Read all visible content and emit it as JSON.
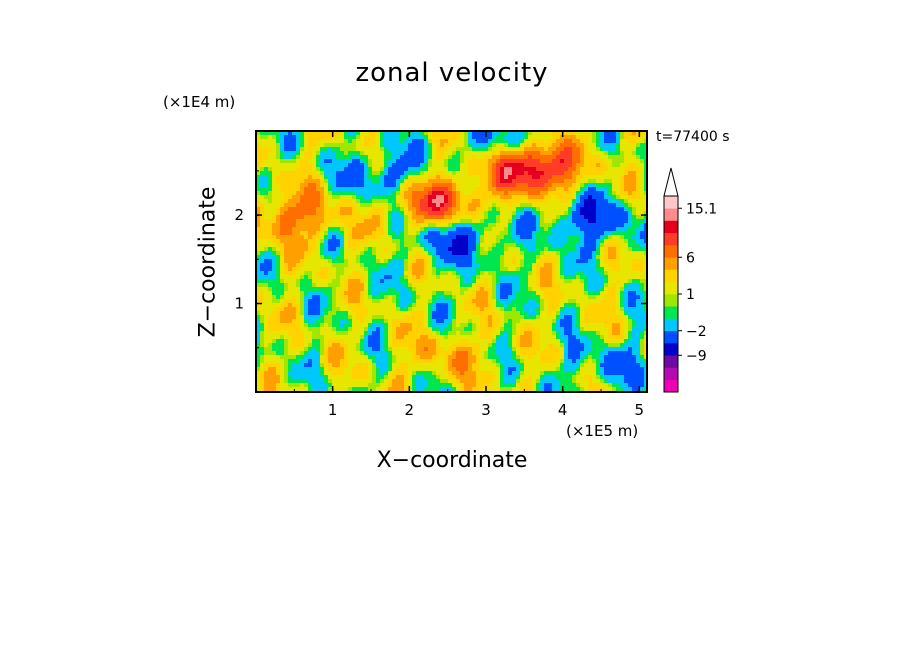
{
  "chart_data": {
    "type": "heatmap",
    "title": "zonal velocity",
    "xlabel": "X−coordinate",
    "ylabel": "Z−coordinate",
    "x_scale_note": "(×1E5 m)",
    "y_scale_note": "(×1E4 m)",
    "time_label": "t=77400 s",
    "xlim": [
      0,
      5.1
    ],
    "ylim": [
      0,
      2.95
    ],
    "x_ticks": [
      "1",
      "2",
      "3",
      "4",
      "5"
    ],
    "y_ticks": [
      "1",
      "2"
    ],
    "colorbar": {
      "levels": [
        "-9",
        "-2",
        "1",
        "6",
        "15.1"
      ],
      "colors": [
        "#f000b4",
        "#b40ab4",
        "#6e0aa0",
        "#0000c8",
        "#0050ff",
        "#00c8ff",
        "#00e650",
        "#a0e600",
        "#e6e600",
        "#ffd200",
        "#ffa000",
        "#ff6e00",
        "#ff3c28",
        "#e6001e",
        "#ff8c8c",
        "#ffc8c8"
      ],
      "extend": "max"
    },
    "features": [
      {
        "x": 2.35,
        "z": 2.15,
        "value": 9
      },
      {
        "x": 3.6,
        "z": 2.55,
        "value": 14
      },
      {
        "x": 2.65,
        "z": 1.75,
        "value": -6
      },
      {
        "x": 1.7,
        "z": 2.45,
        "value": -5
      },
      {
        "x": 4.35,
        "z": 1.95,
        "value": -6
      },
      {
        "x": 0.5,
        "z": 2.0,
        "value": 6
      },
      {
        "x": 3.3,
        "z": 2.8,
        "value": -5
      },
      {
        "x": 4.6,
        "z": 0.3,
        "value": -3
      },
      {
        "x": 2.5,
        "z": 0.4,
        "value": 3
      },
      {
        "x": 2.3,
        "z": 1.0,
        "value": -0.5
      }
    ]
  }
}
